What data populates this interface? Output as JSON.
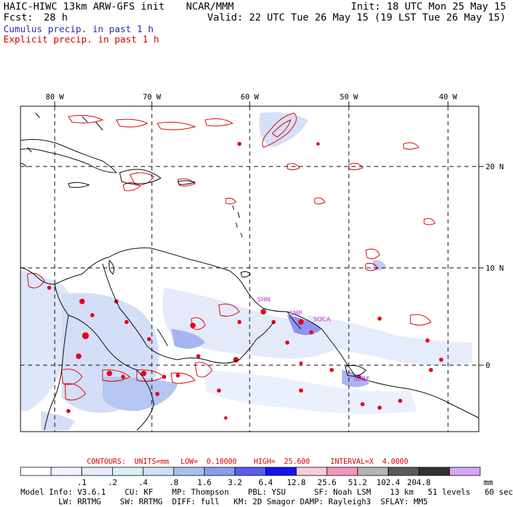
{
  "header": {
    "model_title": "HAIC-HIWC 13km ARW-GFS init",
    "org": "NCAR/MMM",
    "init": "Init: 18 UTC Mon 25 May 15",
    "fcst_label": "Fcst:",
    "fcst_value": "28 h",
    "valid": "Valid: 22 UTC Tue 26 May 15 (19 LST Tue 26 May 15)",
    "legend_cumulus": "Cumulus precip. in past 1 h",
    "legend_explicit": "Explicit precip. in past 1 h"
  },
  "map": {
    "lon_labels": [
      "80 W",
      "70 W",
      "60 W",
      "50 W",
      "40 W"
    ],
    "lat_labels": [
      "20 N",
      "10 N",
      "0"
    ],
    "station_labels": [
      "SHN",
      "SMP",
      "SOCA",
      "SBBE"
    ]
  },
  "contours": {
    "units_label": "CONTOURS:  UNITS=mm",
    "low": "LOW=  0.10000",
    "high": "HIGH=  25.600",
    "interval": "INTERVAL=X  4.0000"
  },
  "colorbar": {
    "unit": "mm",
    "labels": [
      ".1",
      ".2",
      ".4",
      ".8",
      "1.6",
      "3.2",
      "6.4",
      "12.8",
      "25.6",
      "51.2",
      "102.4",
      "204.8"
    ],
    "colors": [
      "#ffffff",
      "#f2f2ff",
      "#e6eafa",
      "#dceef6",
      "#cde3f5",
      "#a8c0ef",
      "#8a9cf0",
      "#5c5cf0",
      "#1414f0",
      "#f6ccd8",
      "#f296bc",
      "#b4b4b4",
      "#5a5a5a",
      "#323232",
      "#d2a6f5"
    ]
  },
  "footer": {
    "line1": "Model Info: V3.6.1    CU: KF    MP: Thompson    PBL: YSU      SF: Noah LSM    13 km   51 levels   60 sec",
    "line2": "        LW: RRTMG    SW: RRTMG  DIFF: full   KM: 2D Smagor DAMP: Rayleigh3  SFLAY: MM5"
  }
}
